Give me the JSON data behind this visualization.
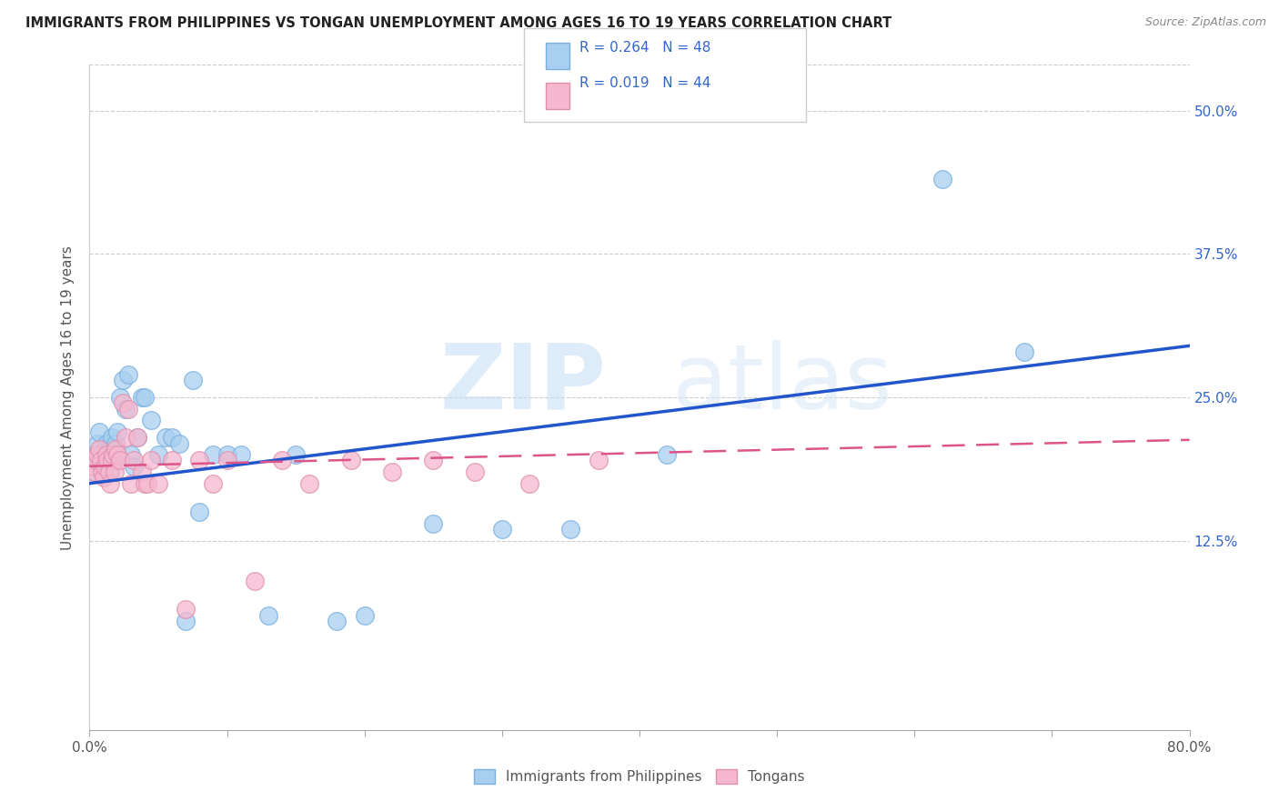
{
  "title": "IMMIGRANTS FROM PHILIPPINES VS TONGAN UNEMPLOYMENT AMONG AGES 16 TO 19 YEARS CORRELATION CHART",
  "source": "Source: ZipAtlas.com",
  "ylabel": "Unemployment Among Ages 16 to 19 years",
  "ytick_labels": [
    "",
    "12.5%",
    "25.0%",
    "37.5%",
    "50.0%"
  ],
  "ytick_values": [
    0.0,
    0.125,
    0.25,
    0.375,
    0.5
  ],
  "xlim": [
    0.0,
    0.8
  ],
  "ylim": [
    -0.04,
    0.54
  ],
  "blue_color": "#a8cff0",
  "blue_edge": "#7ab0e0",
  "pink_color": "#f5b8ce",
  "pink_edge": "#e090ae",
  "trendline_blue": "#2255cc",
  "trendline_pink": "#dd5588",
  "philippines_x": [
    0.003,
    0.004,
    0.005,
    0.006,
    0.007,
    0.008,
    0.009,
    0.01,
    0.011,
    0.012,
    0.013,
    0.014,
    0.015,
    0.016,
    0.017,
    0.018,
    0.019,
    0.02,
    0.022,
    0.024,
    0.026,
    0.028,
    0.03,
    0.032,
    0.035,
    0.038,
    0.04,
    0.045,
    0.05,
    0.055,
    0.06,
    0.065,
    0.07,
    0.075,
    0.08,
    0.09,
    0.1,
    0.11,
    0.13,
    0.15,
    0.18,
    0.2,
    0.25,
    0.3,
    0.35,
    0.42,
    0.62,
    0.68
  ],
  "philippines_y": [
    0.195,
    0.185,
    0.2,
    0.21,
    0.22,
    0.2,
    0.19,
    0.185,
    0.195,
    0.21,
    0.195,
    0.205,
    0.185,
    0.215,
    0.2,
    0.195,
    0.21,
    0.22,
    0.25,
    0.265,
    0.24,
    0.27,
    0.2,
    0.19,
    0.215,
    0.25,
    0.25,
    0.23,
    0.2,
    0.215,
    0.215,
    0.21,
    0.055,
    0.265,
    0.15,
    0.2,
    0.2,
    0.2,
    0.06,
    0.2,
    0.055,
    0.06,
    0.14,
    0.135,
    0.135,
    0.2,
    0.44,
    0.29
  ],
  "tongan_x": [
    0.003,
    0.004,
    0.005,
    0.006,
    0.007,
    0.008,
    0.009,
    0.01,
    0.011,
    0.012,
    0.013,
    0.014,
    0.015,
    0.016,
    0.017,
    0.018,
    0.019,
    0.02,
    0.022,
    0.024,
    0.026,
    0.028,
    0.03,
    0.032,
    0.035,
    0.038,
    0.04,
    0.042,
    0.045,
    0.05,
    0.06,
    0.07,
    0.08,
    0.09,
    0.1,
    0.12,
    0.14,
    0.16,
    0.19,
    0.22,
    0.25,
    0.28,
    0.32,
    0.37
  ],
  "tongan_y": [
    0.19,
    0.185,
    0.195,
    0.2,
    0.205,
    0.195,
    0.185,
    0.18,
    0.19,
    0.2,
    0.195,
    0.185,
    0.175,
    0.195,
    0.2,
    0.185,
    0.205,
    0.2,
    0.195,
    0.245,
    0.215,
    0.24,
    0.175,
    0.195,
    0.215,
    0.185,
    0.175,
    0.175,
    0.195,
    0.175,
    0.195,
    0.065,
    0.195,
    0.175,
    0.195,
    0.09,
    0.195,
    0.175,
    0.195,
    0.185,
    0.195,
    0.185,
    0.175,
    0.195
  ],
  "blue_trendline_x0": 0.0,
  "blue_trendline_y0": 0.175,
  "blue_trendline_x1": 0.8,
  "blue_trendline_y1": 0.295,
  "pink_trendline_x0": 0.0,
  "pink_trendline_y0": 0.19,
  "pink_trendline_x1": 0.8,
  "pink_trendline_y1": 0.213
}
